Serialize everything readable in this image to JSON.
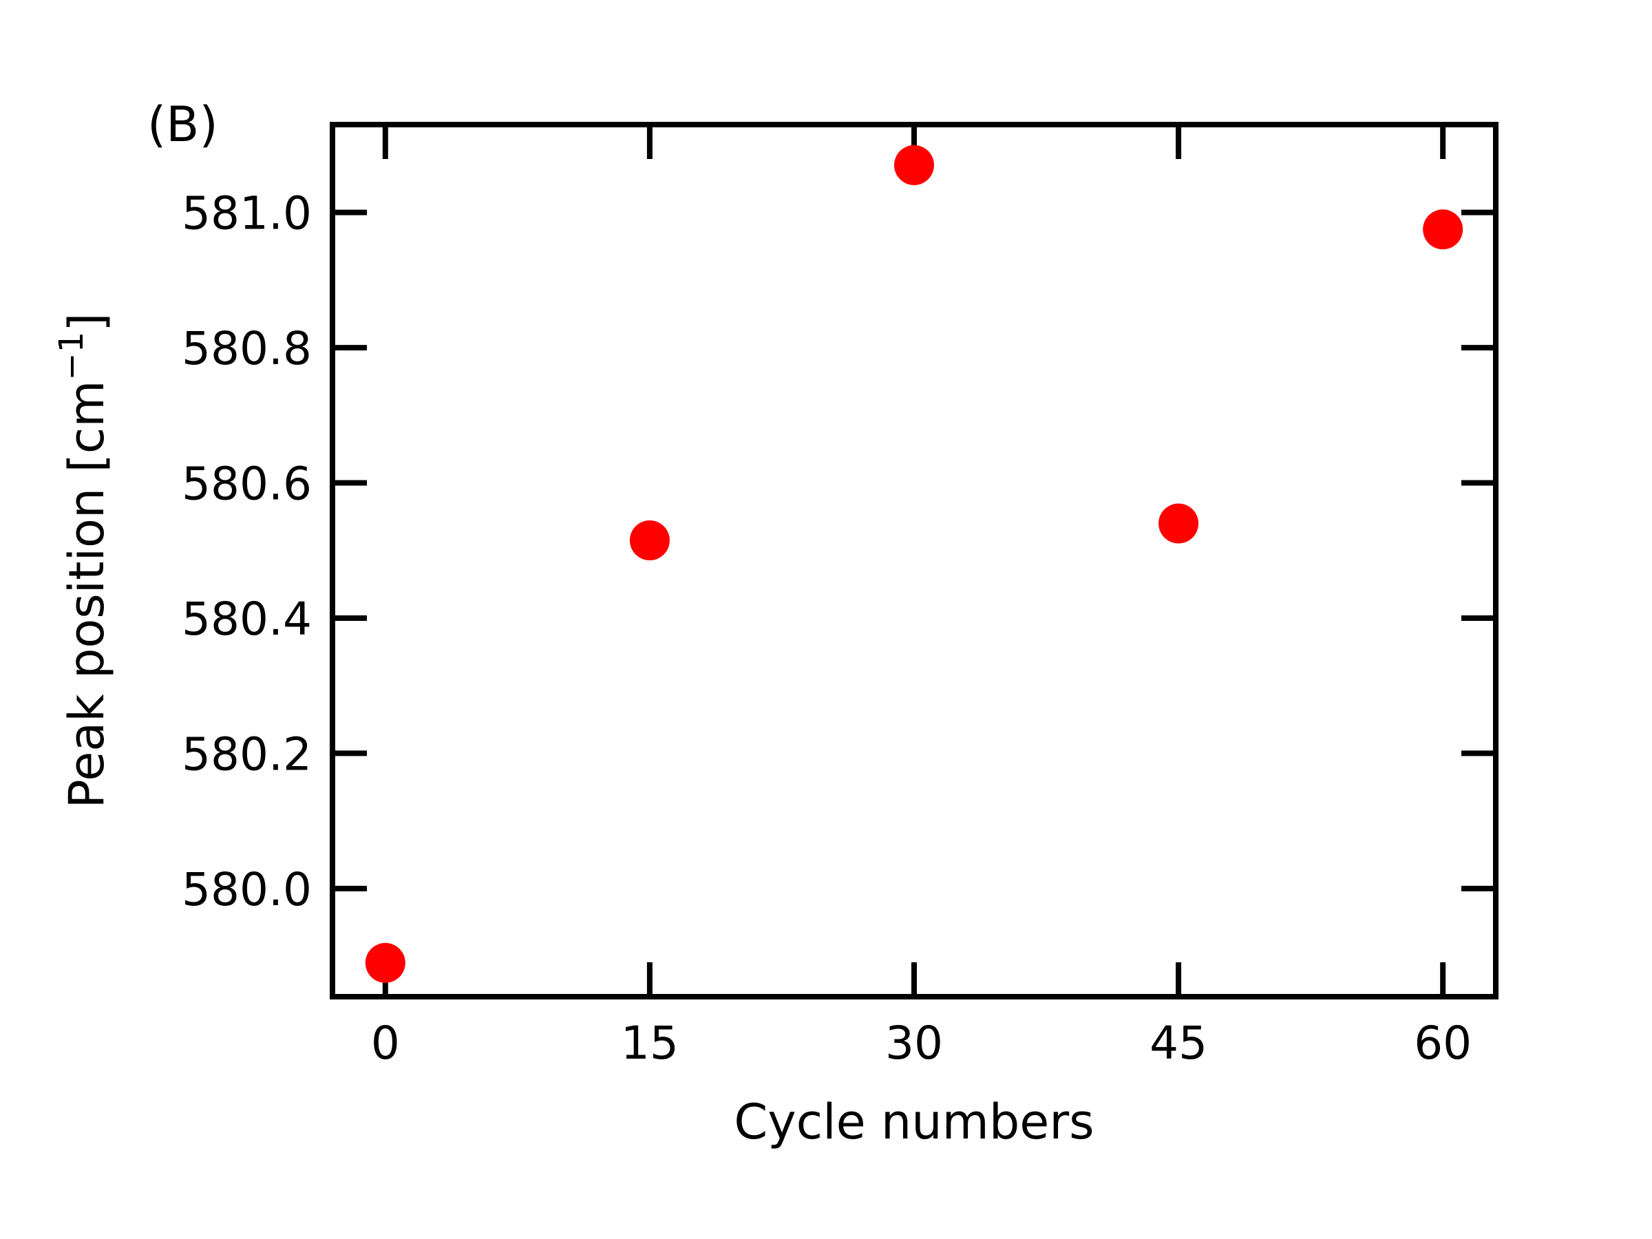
{
  "chart_data": {
    "type": "scatter",
    "panel_label": "(B)",
    "xlabel": "Cycle numbers",
    "ylabel": {
      "base": "Peak position [cm",
      "superscript": "−1",
      "suffix": "]"
    },
    "x": [
      0,
      15,
      30,
      45,
      60
    ],
    "y": [
      579.89,
      580.515,
      581.07,
      580.54,
      580.975
    ],
    "xticks": [
      0,
      15,
      30,
      45,
      60
    ],
    "xtick_labels": [
      "0",
      "15",
      "30",
      "45",
      "60"
    ],
    "yticks": [
      580.0,
      580.2,
      580.4,
      580.6,
      580.8,
      581.0
    ],
    "ytick_labels": [
      "580.0",
      "580.2",
      "580.4",
      "580.6",
      "580.8",
      "581.0"
    ],
    "xlim": [
      -3,
      63
    ],
    "ylim": [
      579.84,
      581.13
    ],
    "grid": false,
    "marker_color": "#ff0000",
    "axis_color": "#000000"
  }
}
